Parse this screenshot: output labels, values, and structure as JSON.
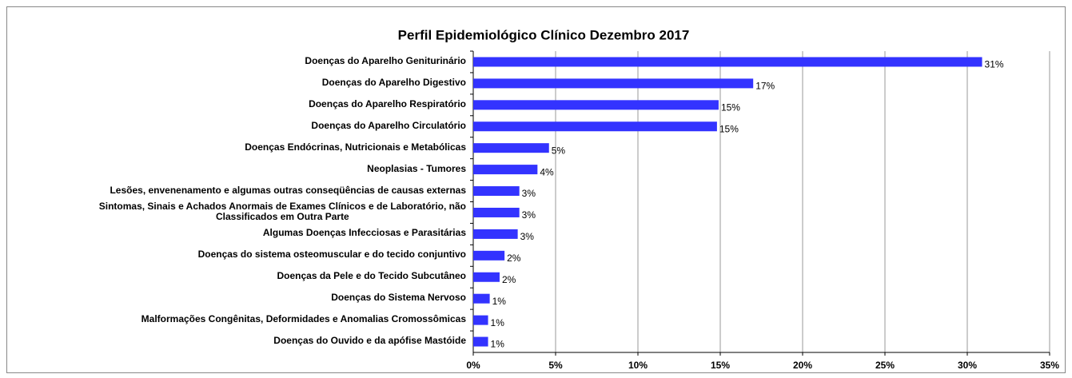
{
  "chart_data": {
    "type": "hbar",
    "title": "Perfil Epidemiológico Clínico Dezembro 2017",
    "categories": [
      "Doenças do Aparelho Geniturinário",
      "Doenças do Aparelho Digestivo",
      "Doenças do Aparelho Respiratório",
      "Doenças do Aparelho Circulatório",
      "Doenças Endócrinas, Nutricionais e Metabólicas",
      "Neoplasias - Tumores",
      "Lesões, envenenamento e algumas outras conseqüências de causas externas",
      "Sintomas, Sinais e Achados Anormais de Exames Clínicos e de Laboratório, não\nClassificados em Outra Parte",
      "Algumas Doenças Infecciosas e Parasitárias",
      "Doenças do sistema osteomuscular e do tecido conjuntivo",
      "Doenças da Pele e do Tecido Subcutâneo",
      "Doenças do Sistema Nervoso",
      "Malformações Congênitas, Deformidades e Anomalias Cromossômicas",
      "Doenças do Ouvido e da apófise Mastóide"
    ],
    "values": [
      30.9,
      17,
      14.9,
      14.8,
      4.6,
      3.9,
      2.8,
      2.8,
      2.7,
      1.9,
      1.6,
      1.0,
      0.9,
      0.9
    ],
    "value_labels": [
      "31%",
      "17%",
      "15%",
      "15%",
      "5%",
      "4%",
      "3%",
      "3%",
      "3%",
      "2%",
      "2%",
      "1%",
      "1%",
      "1%"
    ],
    "color": "#3333ff",
    "xlim": [
      0,
      35
    ],
    "xticks": [
      {
        "value": 0,
        "label": "0%"
      },
      {
        "value": 5,
        "label": "5%"
      },
      {
        "value": 10,
        "label": "10%"
      },
      {
        "value": 15,
        "label": "15%"
      },
      {
        "value": 20,
        "label": "20%"
      },
      {
        "value": 25,
        "label": "25%"
      },
      {
        "value": 30,
        "label": "30%"
      },
      {
        "value": 35,
        "label": "35%"
      }
    ],
    "grid": true
  }
}
